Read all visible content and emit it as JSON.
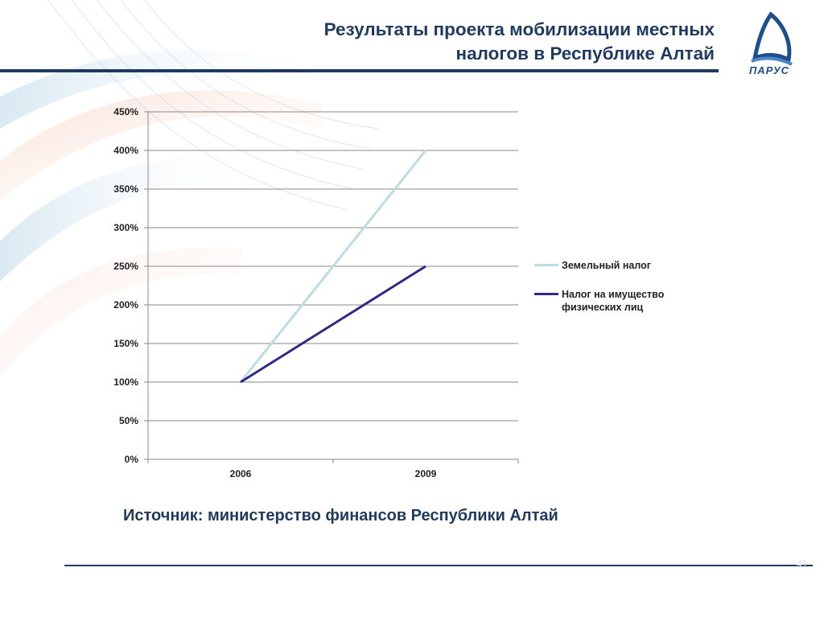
{
  "slide": {
    "title_line1": "Результаты проекта мобилизации местных",
    "title_line2": "налогов в Республике Алтай",
    "logo_text": "ПАРУС",
    "source": "Источник: министерство финансов Республики Алтай",
    "page_number": "41",
    "colors": {
      "title": "#1f3a5f",
      "rule": "#1f3a5f"
    }
  },
  "chart_data": {
    "type": "line",
    "categories": [
      "2006",
      "2009"
    ],
    "series": [
      {
        "name": "Земельный налог",
        "values": [
          100,
          400
        ],
        "color": "#b8dde3"
      },
      {
        "name": "Налог на имущество физических лиц",
        "values": [
          100,
          250
        ],
        "color": "#2e2a86"
      }
    ],
    "ylim": [
      0,
      450
    ],
    "yticks": [
      "0%",
      "50%",
      "100%",
      "150%",
      "200%",
      "250%",
      "300%",
      "350%",
      "400%",
      "450%"
    ],
    "grid": true,
    "legend": "right"
  }
}
